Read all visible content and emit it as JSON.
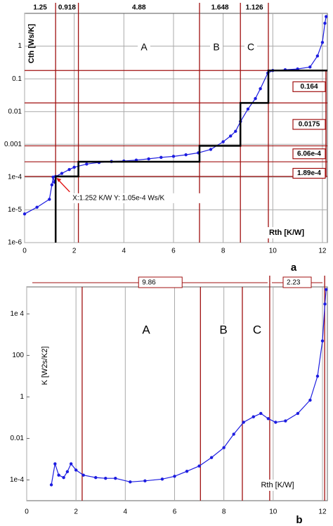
{
  "chart_data": [
    {
      "type": "line",
      "panel": "a",
      "y_label": "Cth [Ws/K]",
      "x_label": "Rth [K/W]",
      "log_y": true,
      "grid": "both",
      "xlim": [
        0,
        12.2
      ],
      "ylim": [
        1e-06,
        10
      ],
      "xticks": [
        0,
        2,
        4,
        6,
        8,
        10,
        12
      ],
      "yticks": [
        {
          "value": 1e-06,
          "label": "1e-6"
        },
        {
          "value": 1e-05,
          "label": "1e-5"
        },
        {
          "value": 0.0001,
          "label": "1e-4"
        },
        0.001,
        0.01,
        0.1,
        1
      ],
      "regions": [
        "A",
        "B",
        "C"
      ],
      "segments": [
        1.25,
        0.918,
        4.88,
        1.648,
        1.126
      ],
      "steps": {
        "values": [
          0.164,
          0.0175,
          0.000606,
          0.000189
        ],
        "value_labels": [
          "0.164",
          "0.0175",
          "6.06e-4",
          "1.89e-4"
        ],
        "color": "#a01010"
      },
      "cursor": {
        "x": 1.252,
        "y": 0.000105,
        "label": "X:1.252  K/W   Y: 1.05e-4 Ws/K"
      },
      "series": [
        {
          "color": "#1c1ce0",
          "markers": true,
          "x": [
            0,
            0.5,
            1.0,
            1.1,
            1.15,
            1.2,
            1.25,
            1.5,
            1.8,
            2.0,
            2.5,
            3.0,
            3.5,
            4.0,
            4.5,
            5.0,
            5.5,
            6.0,
            6.5,
            7.0,
            7.5,
            8.0,
            8.3,
            8.5,
            8.7,
            9.0,
            9.3,
            9.5,
            9.8,
            10.0,
            10.5,
            11.0,
            11.5,
            11.8,
            12.0,
            12.1,
            12.15
          ],
          "values": [
            7.5e-06,
            1.2e-05,
            2.1e-05,
            5.8e-05,
            0.0001,
            7e-05,
            0.000105,
            0.00013,
            0.00017,
            0.0002,
            0.00025,
            0.00028,
            0.0003,
            0.00031,
            0.00033,
            0.00036,
            0.0004,
            0.00043,
            0.00048,
            0.00055,
            0.0007,
            0.0012,
            0.0018,
            0.0025,
            0.005,
            0.012,
            0.025,
            0.05,
            0.15,
            0.18,
            0.19,
            0.2,
            0.23,
            0.5,
            1.3,
            5,
            8
          ]
        },
        {
          "color": "#000000",
          "x": [
            1.25,
            1.25,
            2.168,
            2.168,
            7.048,
            7.048,
            8.696,
            8.696,
            9.822,
            9.822,
            12.2
          ],
          "values": [
            1e-06,
            0.000105,
            0.000105,
            0.000294,
            0.000294,
            0.0009,
            0.0009,
            0.0184,
            0.0184,
            0.18,
            0.18
          ]
        }
      ]
    },
    {
      "type": "line",
      "panel": "b",
      "y_label": "K [W2s/K2]",
      "x_label": "Rth  [K/W]",
      "log_y": true,
      "grid": "x",
      "xlim": [
        0,
        12.2
      ],
      "ylim": [
        1e-05,
        200000
      ],
      "xticks": [
        0,
        2,
        4,
        6,
        8,
        10,
        12
      ],
      "yticks": [
        {
          "value": 0.0001,
          "label": "1e-4"
        },
        0.01,
        1,
        100,
        {
          "value": 10000,
          "label": "1e 4"
        }
      ],
      "regions": [
        "A",
        "B",
        "C"
      ],
      "segments": [
        9.86,
        2.23
      ],
      "boundaries": [
        2.25,
        7.05,
        8.75
      ],
      "series": [
        {
          "color": "#1c1ce0",
          "markers": true,
          "x": [
            1.0,
            1.15,
            1.3,
            1.5,
            1.65,
            1.8,
            2.0,
            2.3,
            2.8,
            3.2,
            3.6,
            4.2,
            4.8,
            5.5,
            6.0,
            6.5,
            7.0,
            7.5,
            8.0,
            8.4,
            8.8,
            9.2,
            9.5,
            9.8,
            10.1,
            10.5,
            11.0,
            11.5,
            11.8,
            12.0,
            12.1,
            12.15
          ],
          "values": [
            5.8e-05,
            0.0006,
            0.00017,
            0.00013,
            0.00025,
            0.0006,
            0.0003,
            0.00017,
            0.00013,
            0.00012,
            0.00012,
            8e-05,
            9e-05,
            0.00011,
            0.00015,
            0.00026,
            0.00047,
            0.0012,
            0.0036,
            0.016,
            0.06,
            0.11,
            0.16,
            0.09,
            0.06,
            0.07,
            0.16,
            0.7,
            10,
            500,
            30000,
            150000
          ]
        }
      ]
    }
  ]
}
